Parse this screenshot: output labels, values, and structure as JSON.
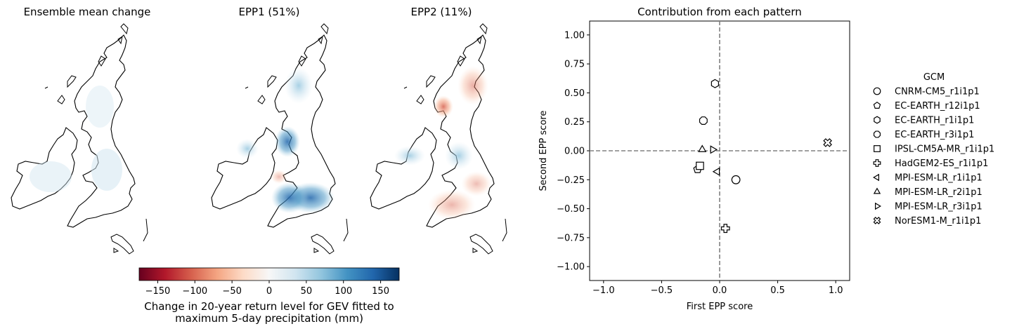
{
  "maps": {
    "panels": [
      {
        "title": "Ensemble mean change"
      },
      {
        "title": "EPP1 (51%)"
      },
      {
        "title": "EPP2 (11%)"
      }
    ],
    "colorbar": {
      "ticks": [
        -150,
        -100,
        -50,
        0,
        50,
        100,
        150
      ],
      "range": [
        -175,
        175
      ],
      "label_line1": "Change in 20-year return level for GEV fitted to",
      "label_line2": "maximum 5-day precipitation (mm)",
      "colors": [
        "#67001f",
        "#b2182b",
        "#d6604d",
        "#f4a582",
        "#fddbc7",
        "#f7f7f7",
        "#d1e5f0",
        "#92c5de",
        "#4393c3",
        "#2166ac",
        "#053061"
      ]
    }
  },
  "chart_data": {
    "type": "scatter",
    "title": "Contribution from each pattern",
    "xlabel": "First EPP score",
    "ylabel": "Second EPP score",
    "xlim": [
      -1.12,
      1.12
    ],
    "ylim": [
      -1.12,
      1.12
    ],
    "xticks": [
      -1.0,
      -0.5,
      0.0,
      0.5,
      1.0
    ],
    "yticks": [
      1.0,
      0.75,
      0.5,
      0.25,
      0.0,
      -0.25,
      -0.5,
      -0.75,
      -1.0
    ],
    "reference_lines": {
      "x": 0,
      "y": 0,
      "style": "dashed",
      "color": "#808080"
    },
    "grid": false,
    "legend_title": "GCM",
    "legend_position": "right",
    "series": [
      {
        "name": "CNRM-CM5_r1i1p1",
        "marker": "circle",
        "x": 0.14,
        "y": -0.25
      },
      {
        "name": "EC-EARTH_r12i1p1",
        "marker": "pentagon",
        "x": -0.19,
        "y": -0.16
      },
      {
        "name": "EC-EARTH_r1i1p1",
        "marker": "hexagon",
        "x": -0.04,
        "y": 0.58
      },
      {
        "name": "EC-EARTH_r3i1p1",
        "marker": "octagon",
        "x": -0.14,
        "y": 0.26
      },
      {
        "name": "IPSL-CM5A-MR_r1i1p1",
        "marker": "square",
        "x": -0.17,
        "y": -0.13
      },
      {
        "name": "HadGEM2-ES_r1i1p1",
        "marker": "plus",
        "x": 0.05,
        "y": -0.67
      },
      {
        "name": "MPI-ESM-LR_r1i1p1",
        "marker": "triangle-left",
        "x": -0.02,
        "y": -0.18
      },
      {
        "name": "MPI-ESM-LR_r2i1p1",
        "marker": "triangle-up",
        "x": -0.15,
        "y": 0.01
      },
      {
        "name": "MPI-ESM-LR_r3i1p1",
        "marker": "triangle-right",
        "x": -0.06,
        "y": 0.01
      },
      {
        "name": "NorESM1-M_r1i1p1",
        "marker": "x",
        "x": 0.93,
        "y": 0.07
      }
    ]
  }
}
